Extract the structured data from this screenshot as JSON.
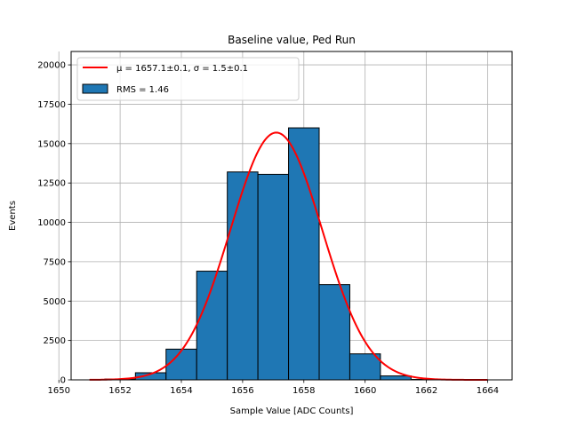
{
  "chart_data": {
    "type": "bar",
    "title": "Baseline value, Ped Run",
    "xlabel": "Sample Value [ADC Counts]",
    "ylabel": "Events",
    "xlim": [
      1650.4,
      1664.8
    ],
    "ylim": [
      0,
      20850
    ],
    "grid": true,
    "xticks": [
      1650,
      1652,
      1654,
      1656,
      1658,
      1660,
      1662,
      1664
    ],
    "yticks": [
      0,
      2500,
      5000,
      7500,
      10000,
      12500,
      15000,
      17500,
      20000
    ],
    "histogram": {
      "bin_edges": [
        1650.5,
        1651.5,
        1652.5,
        1653.5,
        1654.5,
        1655.5,
        1656.5,
        1657.5,
        1658.5,
        1659.5,
        1660.5,
        1661.5,
        1662.5,
        1663.5,
        1664.5
      ],
      "counts": [
        0,
        50,
        450,
        1950,
        6900,
        13200,
        13050,
        16000,
        6050,
        1650,
        250,
        30,
        0,
        0
      ],
      "color": "#1f77b4",
      "edgecolor": "#000000",
      "label": "RMS = 1.46"
    },
    "fit": {
      "type": "gaussian",
      "mu": 1657.1,
      "sigma": 1.5,
      "amplitude": 15700,
      "x_range": [
        1651,
        1664
      ],
      "color": "#ff0000",
      "label": "μ = 1657.1±0.1, σ = 1.5±0.1"
    },
    "legend": {
      "location": "upper-left",
      "entries": [
        "μ = 1657.1±0.1, σ = 1.5±0.1",
        "RMS = 1.46"
      ]
    }
  }
}
